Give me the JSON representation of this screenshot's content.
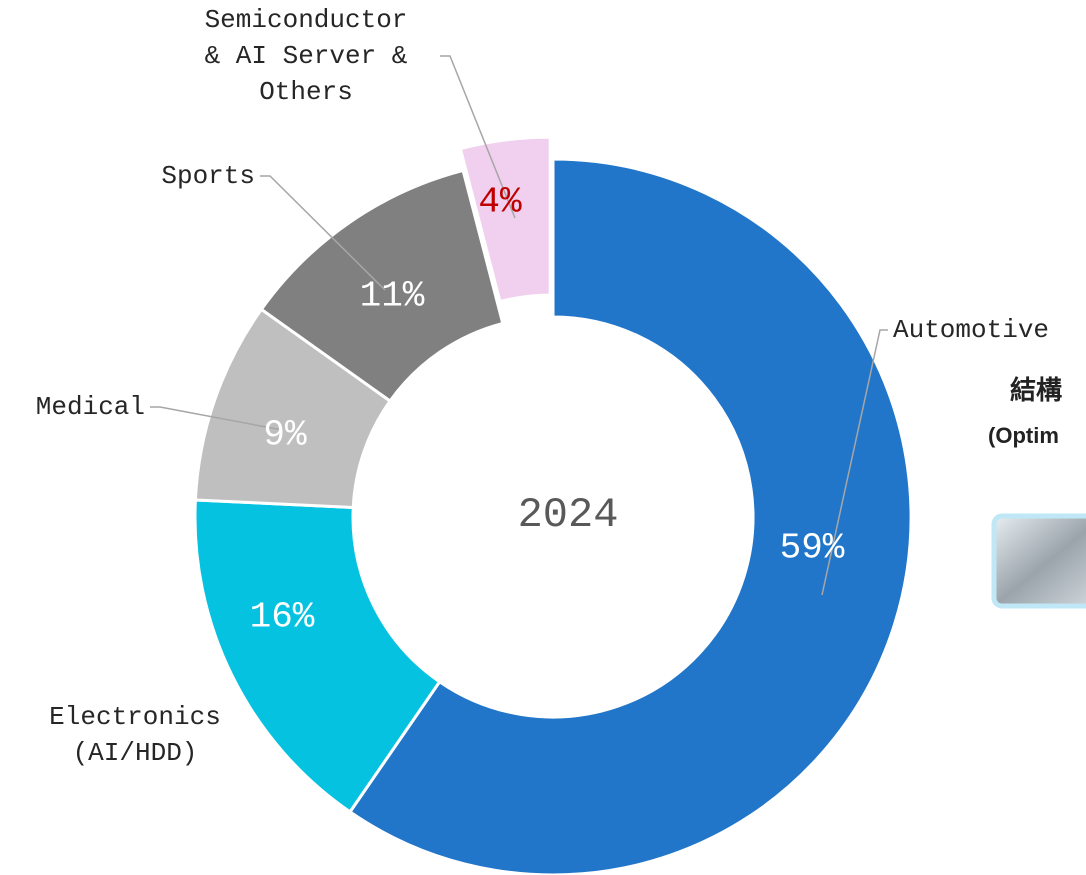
{
  "chart_data": {
    "type": "donut",
    "center_label": "2024",
    "categories": [
      "Automotive",
      "Electronics\n(AI/HDD)",
      "Medical",
      "Sports",
      "Semiconductor\n& AI Server &\nOthers"
    ],
    "values": [
      59,
      16,
      9,
      11,
      4
    ],
    "value_labels": [
      "59%",
      "16%",
      "9%",
      "11%",
      "4%"
    ],
    "colors": [
      "#2176c9",
      "#05c3e0",
      "#bfbfbf",
      "#808080",
      "#f0d0ee"
    ],
    "label_colors": [
      "#ffffff",
      "#ffffff",
      "#ffffff",
      "#ffffff",
      "#c00000"
    ]
  },
  "side_text": [
    "結構",
    "(Optim"
  ]
}
